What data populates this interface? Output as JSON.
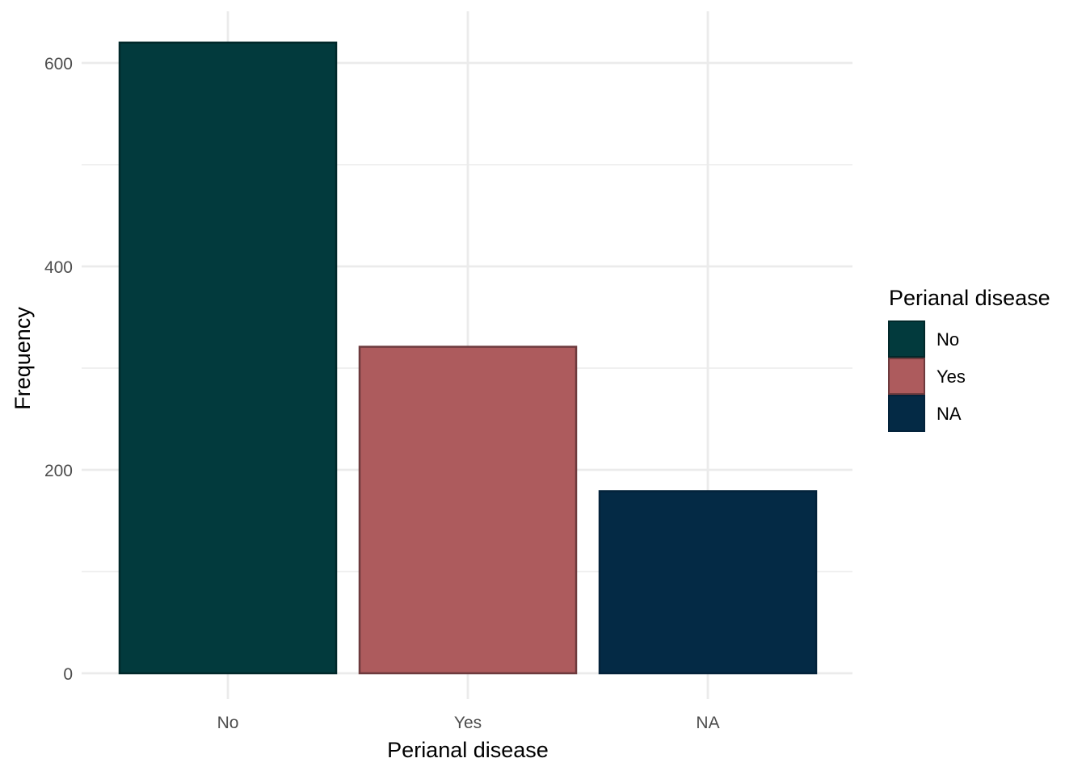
{
  "chart_data": {
    "type": "bar",
    "categories": [
      "No",
      "Yes",
      "NA"
    ],
    "values": [
      620,
      321,
      179
    ],
    "colors": [
      "#023a3d",
      "#ad5b5d",
      "#042a45"
    ],
    "border_colors": [
      "#01282a",
      "#6d3a3d",
      "#03223a"
    ],
    "xlabel": "Perianal disease",
    "ylabel": "Frequency",
    "ylim": [
      0,
      640
    ],
    "yticks": [
      0,
      200,
      400,
      600
    ],
    "y_minor_ticks": [
      100,
      300,
      500
    ],
    "grid": true,
    "legend": {
      "title": "Perianal disease",
      "position": "right",
      "entries": [
        "No",
        "Yes",
        "NA"
      ]
    }
  }
}
